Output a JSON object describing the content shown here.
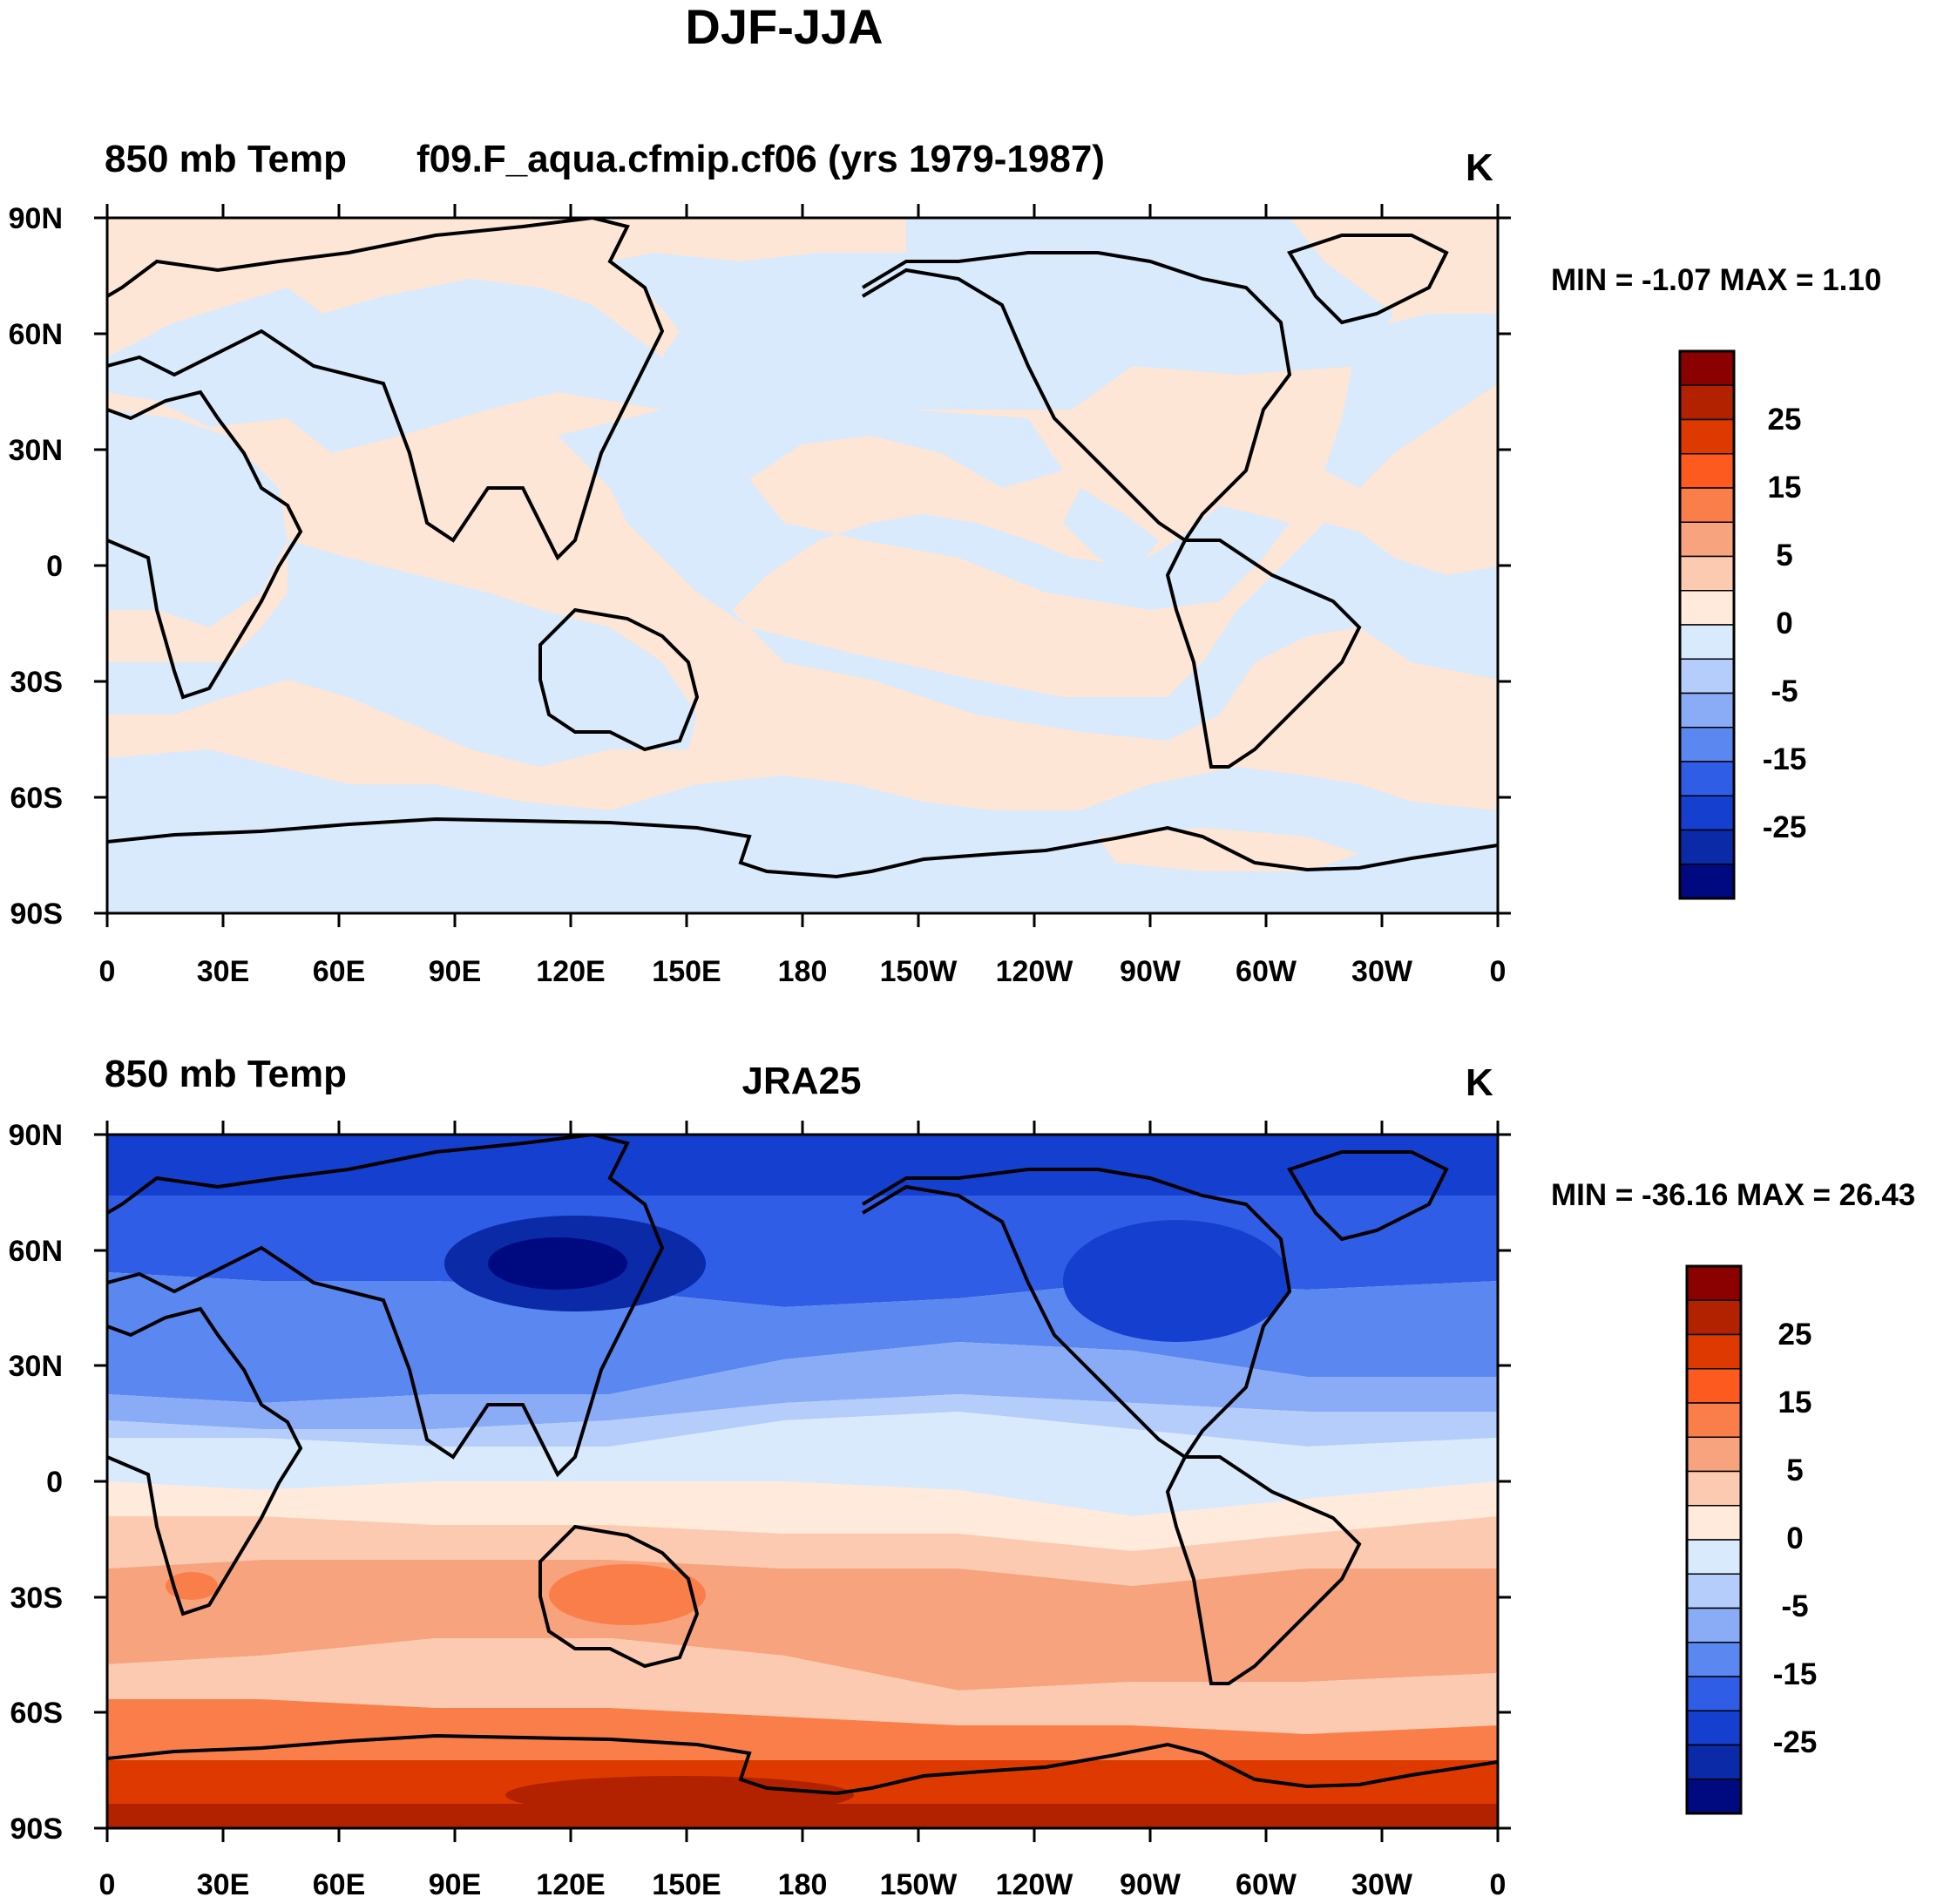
{
  "figure_title": "DJF-JJA",
  "panels": [
    {
      "variable": "850 mb Temp",
      "case": "f09.F_aqua.cfmip.cf06 (yrs 1979-1987)",
      "center_title": "",
      "units": "K",
      "stats": "MIN =  -1.07 MAX =   1.10"
    },
    {
      "variable": "850 mb Temp",
      "case": "",
      "center_title": "JRA25",
      "units": "K",
      "stats": "MIN = -36.16 MAX =  26.43"
    }
  ],
  "axes": {
    "y_labels": [
      "90N",
      "60N",
      "30N",
      "0",
      "30S",
      "60S",
      "90S"
    ],
    "x_labels": [
      "0",
      "30E",
      "60E",
      "90E",
      "120E",
      "150E",
      "180",
      "150W",
      "120W",
      "90W",
      "60W",
      "30W",
      "0"
    ]
  },
  "colorbar": {
    "labels": [
      "25",
      "15",
      "5",
      "0",
      "-5",
      "-15",
      "-25"
    ],
    "colors": [
      "#8b0000",
      "#b22200",
      "#de3a00",
      "#fc5a1e",
      "#fa7e4a",
      "#f7a47e",
      "#fccab0",
      "#ffeadb",
      "#d8eafc",
      "#b4cdfa",
      "#8aacf6",
      "#5a87f0",
      "#2f5de6",
      "#143fcf",
      "#0a2aa8",
      "#000a80"
    ]
  },
  "map_colors": {
    "pos_weak": "#fde6d6",
    "neg_weak": "#d8eafc"
  }
}
